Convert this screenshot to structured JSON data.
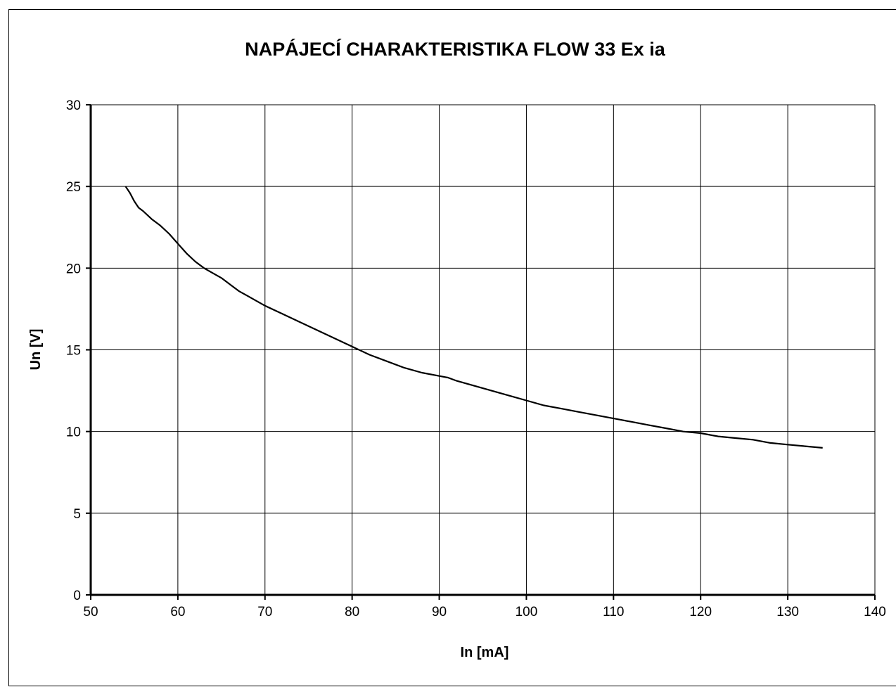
{
  "chart_data": {
    "type": "line",
    "title": "NAPÁJECÍ CHARAKTERISTIKA FLOW 33 Ex ia",
    "xlabel": "In [mA]",
    "ylabel": "Un [V]",
    "xlim": [
      50,
      140
    ],
    "ylim": [
      0,
      30
    ],
    "x_ticks": [
      "50",
      "60",
      "70",
      "80",
      "90",
      "100",
      "110",
      "120",
      "130",
      "140"
    ],
    "y_ticks": [
      "0",
      "5",
      "10",
      "15",
      "20",
      "25",
      "30"
    ],
    "grid": true,
    "legend": "none",
    "series": [
      {
        "color": "#000000",
        "x": [
          54,
          54.5,
          55,
          55.5,
          56,
          57,
          58,
          59,
          60,
          61,
          62,
          63,
          64,
          65,
          66,
          67,
          68,
          69,
          70,
          72,
          74,
          76,
          78,
          80,
          82,
          84,
          86,
          88,
          90,
          91,
          92,
          94,
          96,
          98,
          100,
          102,
          104,
          106,
          108,
          110,
          112,
          114,
          116,
          118,
          120,
          122,
          124,
          126,
          128,
          130,
          132,
          134
        ],
        "y": [
          25.0,
          24.6,
          24.1,
          23.7,
          23.5,
          23.0,
          22.6,
          22.1,
          21.5,
          20.9,
          20.4,
          20.0,
          19.7,
          19.4,
          19.0,
          18.6,
          18.3,
          18.0,
          17.7,
          17.2,
          16.7,
          16.2,
          15.7,
          15.2,
          14.7,
          14.3,
          13.9,
          13.6,
          13.4,
          13.3,
          13.1,
          12.8,
          12.5,
          12.2,
          11.9,
          11.6,
          11.4,
          11.2,
          11.0,
          10.8,
          10.6,
          10.4,
          10.2,
          10.0,
          9.9,
          9.7,
          9.6,
          9.5,
          9.3,
          9.2,
          9.1,
          9.0
        ]
      }
    ]
  }
}
